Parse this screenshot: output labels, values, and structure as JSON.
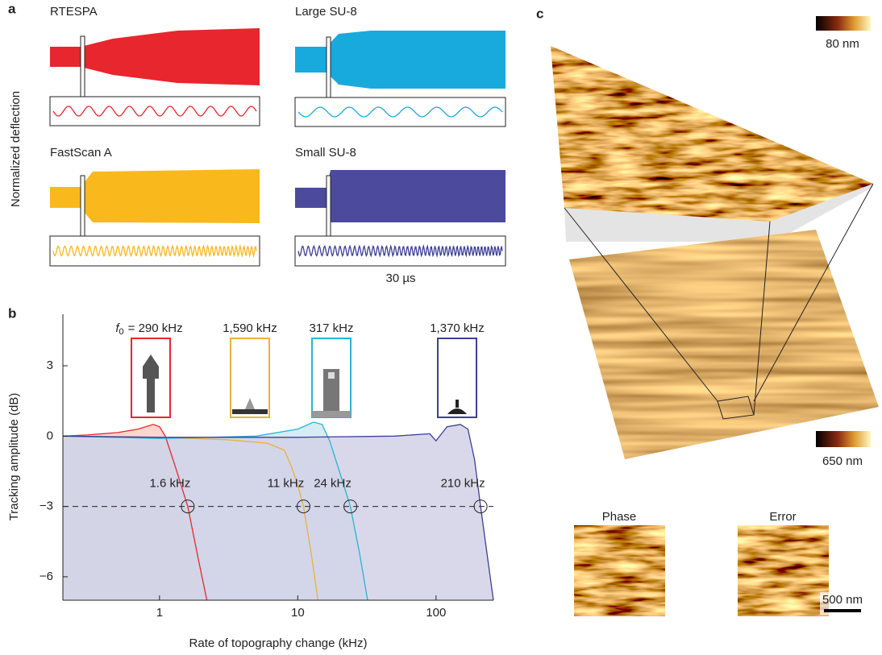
{
  "panel_labels": [
    "a",
    "b",
    "c"
  ],
  "panel_a": {
    "y_label": "Normalized deflection",
    "traces": [
      "RTESPA",
      "Large SU-8",
      "FastScan A",
      "Small SU-8"
    ],
    "scale_label": "30 µs"
  },
  "panel_c": {
    "top_scale": "80 nm",
    "bottom_scale": "650 nm",
    "maps": [
      "Phase",
      "Error"
    ],
    "scale_bar": "500 nm"
  },
  "chart_data": {
    "type": "line",
    "x_label": "Rate of topography change (kHz)",
    "y_label": "Tracking amplitude (dB)",
    "log_x": true,
    "xlim": [
      0.2,
      260
    ],
    "ylim": [
      -7,
      5.2
    ],
    "xticks": [
      1,
      10,
      100
    ],
    "yticks": [
      3,
      0,
      {
        "value": -3,
        "label": "−3"
      },
      {
        "value": -6,
        "label": "−6"
      }
    ],
    "reference_line": -3,
    "resonance_symbol": {
      "base": "f",
      "sub": "0"
    },
    "resonance_labels": [
      "= 290 kHz",
      "1,590 kHz",
      "317 kHz",
      "1,370 kHz"
    ],
    "series": [
      {
        "color": "#e8262d",
        "fill": "#f9cfc4",
        "x": [
          0.2,
          0.3,
          0.5,
          0.7,
          0.9,
          1.0,
          1.1,
          1.3,
          1.6,
          1.9,
          2.2
        ],
        "values": [
          0,
          0.05,
          0.15,
          0.3,
          0.5,
          0.4,
          0,
          -1.3,
          -3,
          -5.2,
          -7
        ]
      },
      {
        "color": "#e8b33a",
        "fill": "#fbe9cc",
        "x": [
          0.2,
          1,
          3,
          6,
          8,
          9,
          10,
          11,
          12.5,
          14
        ],
        "values": [
          0,
          -0.05,
          -0.15,
          -0.3,
          -0.6,
          -1.3,
          -2.1,
          -3,
          -5,
          -7
        ]
      },
      {
        "color": "#2ab3d6",
        "fill": "#cfe7f1",
        "x": [
          0.2,
          1,
          5,
          10,
          13,
          15,
          17,
          20,
          24,
          28,
          32
        ],
        "values": [
          0,
          -0.1,
          0,
          0.3,
          0.6,
          0.5,
          -0.2,
          -1.5,
          -3,
          -5,
          -7
        ]
      },
      {
        "color": "#3d3f95",
        "fill": "#d2d1e6",
        "x": [
          0.2,
          1,
          10,
          50,
          90,
          100,
          120,
          150,
          170,
          190,
          210,
          240,
          260
        ],
        "values": [
          0,
          -0.05,
          -0.05,
          0,
          0.1,
          -0.2,
          0.4,
          0.5,
          0.3,
          -1,
          -3,
          -5.5,
          -7
        ]
      }
    ],
    "cutoffs": {
      "x": [
        1.6,
        11,
        24,
        210
      ],
      "values": [
        -3,
        -3,
        -3,
        -3
      ],
      "x_labels": [
        "1.6 kHz",
        "11 kHz",
        "24 kHz",
        "210 kHz"
      ]
    }
  }
}
